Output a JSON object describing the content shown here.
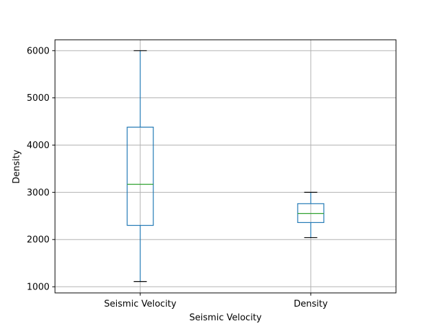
{
  "chart_data": {
    "type": "box",
    "title": "",
    "xlabel": "Seismic Velocity",
    "ylabel": "Density",
    "ylim": [
      870,
      6230
    ],
    "yticks": [
      1000,
      2000,
      3000,
      4000,
      5000,
      6000
    ],
    "ytick_labels": [
      "1000",
      "2000",
      "3000",
      "4000",
      "5000",
      "6000"
    ],
    "grid": true,
    "legend": "none",
    "categories": [
      "Seismic Velocity",
      "Density"
    ],
    "boxes": [
      {
        "name": "Seismic Velocity",
        "whisker_low": 1110,
        "q1": 2300,
        "median": 3170,
        "q3": 4380,
        "whisker_high": 6000
      },
      {
        "name": "Density",
        "whisker_low": 2040,
        "q1": 2360,
        "median": 2550,
        "q3": 2760,
        "whisker_high": 3000
      }
    ],
    "colors": {
      "box": "#1f77b4",
      "median": "#2ca02c",
      "whisker_cap": "#000000",
      "grid": "#b0b0b0",
      "axes": "#000000"
    }
  }
}
